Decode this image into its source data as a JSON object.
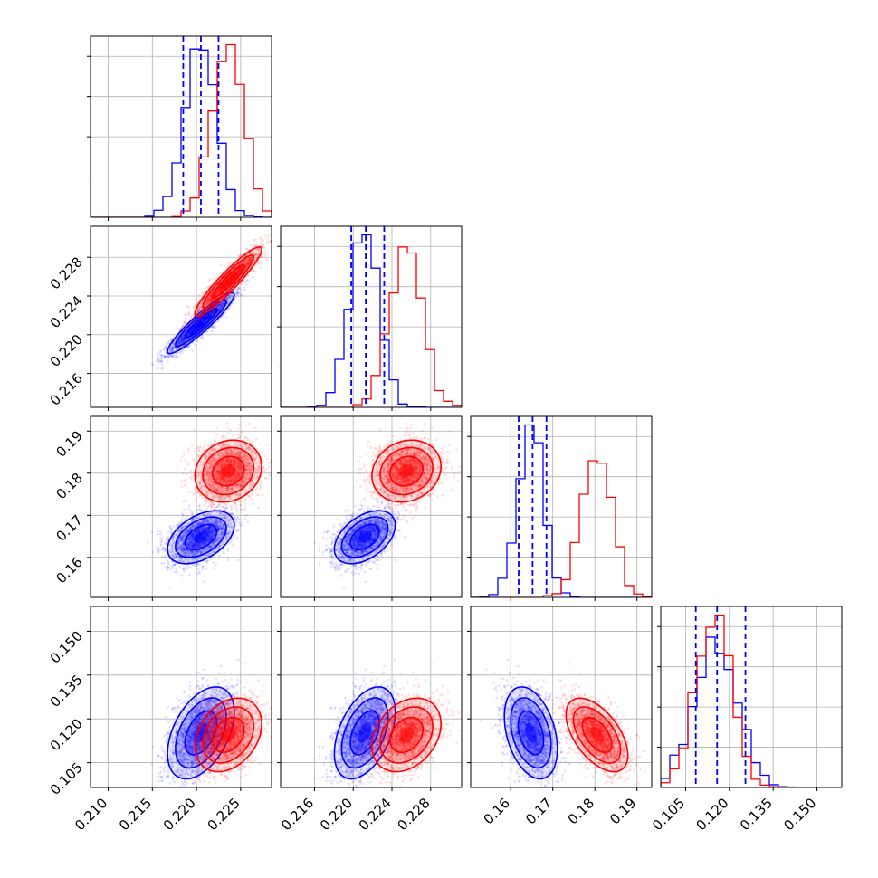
{
  "chart_data": {
    "type": "corner",
    "colors": {
      "blue": "#0000ff",
      "red": "#ff0000"
    },
    "grid": true,
    "params": [
      {
        "range": [
          0.208,
          0.2285
        ],
        "ticks": [
          0.21,
          0.215,
          0.22,
          0.225
        ],
        "tick_labels": [
          "0.210",
          "0.215",
          "0.220",
          "0.225"
        ]
      },
      {
        "range": [
          0.2125,
          0.2312
        ],
        "ticks": [
          0.216,
          0.22,
          0.224,
          0.228
        ],
        "tick_labels": [
          "0.216",
          "0.220",
          "0.224",
          "0.228"
        ]
      },
      {
        "range": [
          0.1505,
          0.1935
        ],
        "ticks": [
          0.16,
          0.17,
          0.18,
          0.19
        ],
        "tick_labels": [
          "0.16",
          "0.17",
          "0.18",
          "0.19"
        ]
      },
      {
        "range": [
          0.0965,
          0.1585
        ],
        "ticks": [
          0.105,
          0.12,
          0.135,
          0.15
        ],
        "tick_labels": [
          "0.105",
          "0.120",
          "0.135",
          "0.150"
        ]
      }
    ],
    "series": [
      {
        "color": "blue",
        "means": [
          0.2205,
          0.2212,
          0.1648,
          0.1152
        ],
        "sds": [
          0.0018,
          0.0015,
          0.003,
          0.0075
        ],
        "corr": [
          [
            1,
            0.93,
            0.45,
            0.45
          ],
          [
            0.93,
            1,
            0.45,
            0.45
          ],
          [
            0.45,
            0.45,
            1,
            -0.35
          ],
          [
            0.45,
            0.45,
            -0.35,
            1
          ]
        ]
      },
      {
        "color": "red",
        "means": [
          0.2236,
          0.2255,
          0.1805,
          0.1145
        ],
        "sds": [
          0.0018,
          0.0017,
          0.0035,
          0.006
        ],
        "corr": [
          [
            1,
            0.93,
            0.15,
            0.3
          ],
          [
            0.93,
            1,
            0.15,
            0.3
          ],
          [
            0.15,
            0.15,
            1,
            -0.55
          ],
          [
            0.3,
            0.3,
            -0.55,
            1
          ]
        ]
      }
    ],
    "quantile_lines": [
      [
        0.2185,
        0.2205,
        0.2225
      ],
      [
        0.2198,
        0.2213,
        0.2232
      ],
      [
        0.1619,
        0.1652,
        0.1685
      ],
      [
        0.1085,
        0.1158,
        0.1255
      ]
    ],
    "contour_levels": [
      1.0,
      1.6,
      2.1
    ]
  }
}
